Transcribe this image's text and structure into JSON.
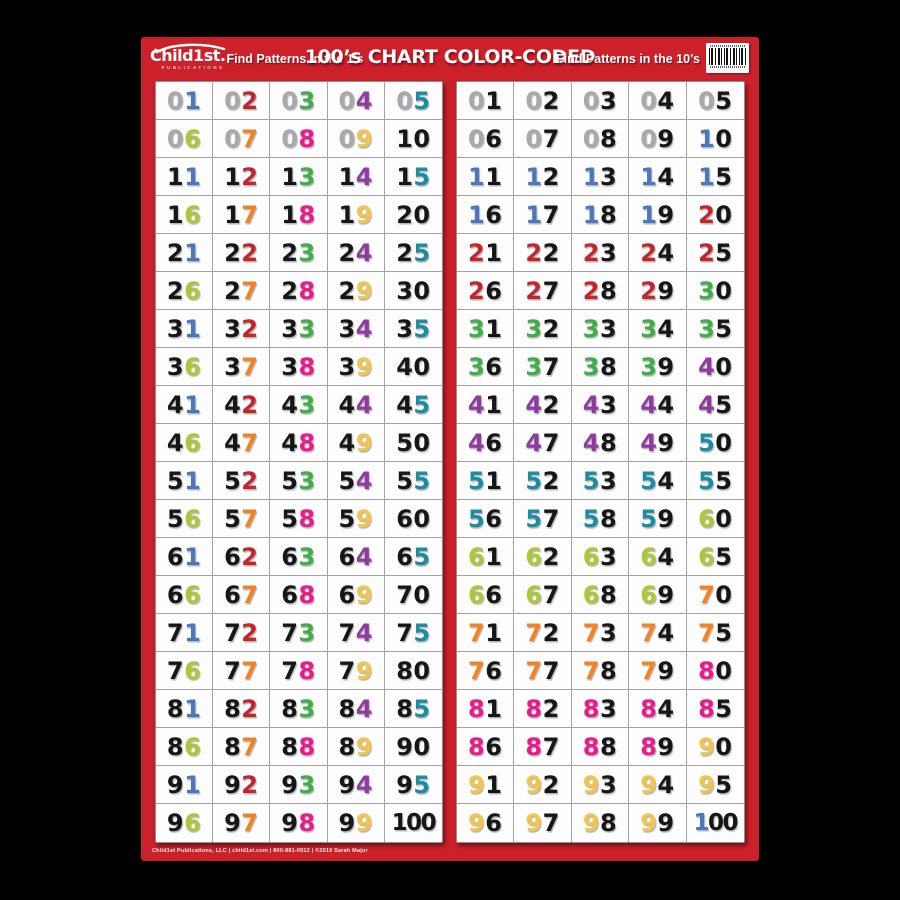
{
  "poster": {
    "title": "100’s CHART COLOR-CODED",
    "left_header": "Find Patterns in the 1’s",
    "right_header": "Find Patterns in the 10’s",
    "logo": {
      "name": "Child1st.",
      "sub": "PUBLICATIONS"
    },
    "footer": "Child1st Publications, LLC  |  child1st.com  |  800-881-0912  |  ©2019 Sarah Major",
    "background": "#cc202b"
  },
  "colors": {
    "digit_black": "#161616",
    "digit_gray": "#a7a9ac",
    "digit_palette": {
      "1": "#4a77be",
      "2": "#c4242c",
      "3": "#3fae49",
      "4": "#8e3a9e",
      "5": "#1d8ba1",
      "6": "#abc837",
      "7": "#f5821f",
      "8": "#eb1a8b",
      "9": "#f0c64f"
    }
  },
  "panels": [
    {
      "id": "ones-chart",
      "mode": "ones"
    },
    {
      "id": "tens-chart",
      "mode": "tens"
    }
  ],
  "numbers": [
    "01",
    "02",
    "03",
    "04",
    "05",
    "06",
    "07",
    "08",
    "09",
    "10",
    "11",
    "12",
    "13",
    "14",
    "15",
    "16",
    "17",
    "18",
    "19",
    "20",
    "21",
    "22",
    "23",
    "24",
    "25",
    "26",
    "27",
    "28",
    "29",
    "30",
    "31",
    "32",
    "33",
    "34",
    "35",
    "36",
    "37",
    "38",
    "39",
    "40",
    "41",
    "42",
    "43",
    "44",
    "45",
    "46",
    "47",
    "48",
    "49",
    "50",
    "51",
    "52",
    "53",
    "54",
    "55",
    "56",
    "57",
    "58",
    "59",
    "60",
    "61",
    "62",
    "63",
    "64",
    "65",
    "66",
    "67",
    "68",
    "69",
    "70",
    "71",
    "72",
    "73",
    "74",
    "75",
    "76",
    "77",
    "78",
    "79",
    "80",
    "81",
    "82",
    "83",
    "84",
    "85",
    "86",
    "87",
    "88",
    "89",
    "90",
    "91",
    "92",
    "93",
    "94",
    "95",
    "96",
    "97",
    "98",
    "99",
    "100"
  ]
}
